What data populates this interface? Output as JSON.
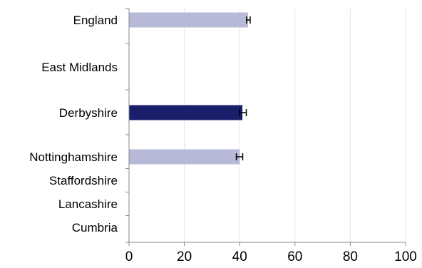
{
  "chart_data": {
    "type": "bar",
    "orientation": "horizontal",
    "categories": [
      "England",
      "East Midlands",
      "Derbyshire",
      "Nottinghamshire",
      "Staffordshire",
      "Lancashire",
      "Cumbria"
    ],
    "values": [
      43,
      null,
      41,
      40,
      null,
      null,
      null
    ],
    "error_bars": [
      [
        42.5,
        43.8
      ],
      null,
      [
        40.0,
        42.4
      ],
      [
        38.8,
        41.1
      ],
      null,
      null,
      null
    ],
    "bar_colors": [
      "#b8b8d8",
      "#b8b8d8",
      "#1a1f6b",
      "#b8b8d8",
      "#b8b8d8",
      "#b8b8d8",
      "#b8b8d8"
    ],
    "xlim": [
      0,
      100
    ],
    "xticks": [
      0,
      20,
      40,
      60,
      80,
      100
    ],
    "grid": true,
    "colors": {
      "axis": "#888888",
      "grid": "#e6e6e6",
      "error_bar": "#000000"
    }
  }
}
